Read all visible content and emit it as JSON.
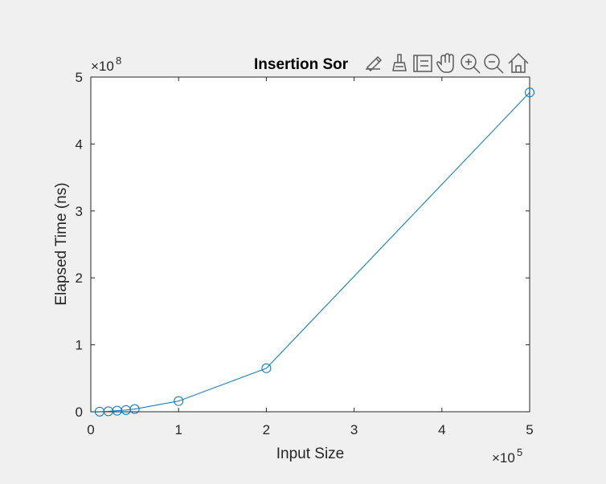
{
  "chart_data": {
    "type": "line",
    "title": "Insertion Sor",
    "xlabel": "Input Size",
    "ylabel": "Elapsed Time (ns)",
    "xlim": [
      0,
      500000
    ],
    "ylim": [
      0,
      500000000
    ],
    "x_ticks": [
      0,
      100000,
      200000,
      300000,
      400000,
      500000
    ],
    "y_ticks": [
      0,
      100000000,
      200000000,
      300000000,
      400000000,
      500000000
    ],
    "x_tick_labels": [
      "0",
      "1",
      "2",
      "3",
      "4",
      "5"
    ],
    "y_tick_labels": [
      "0",
      "1",
      "2",
      "3",
      "4",
      "5"
    ],
    "x_exponent": {
      "base": "×10",
      "power": "5"
    },
    "y_exponent": {
      "base": "×10",
      "power": "8"
    },
    "grid": false,
    "series": [
      {
        "color": "#0072bd",
        "marker": "circle",
        "points": [
          {
            "x": 10000,
            "y": 200000
          },
          {
            "x": 20000,
            "y": 700000
          },
          {
            "x": 30000,
            "y": 1600000
          },
          {
            "x": 40000,
            "y": 2600000
          },
          {
            "x": 50000,
            "y": 4000000
          },
          {
            "x": 100000,
            "y": 16000000
          },
          {
            "x": 200000,
            "y": 65000000
          },
          {
            "x": 500000,
            "y": 477000000
          }
        ]
      }
    ]
  },
  "toolbar": {
    "icons": [
      "brush-icon",
      "data-tips-icon",
      "legend-icon",
      "pan-icon",
      "zoom-in-icon",
      "zoom-out-icon",
      "home-icon"
    ]
  },
  "colors": {
    "background": "#f0f0f0",
    "axes_background": "#ffffff",
    "axis_color": "#262626",
    "series": "#0072bd"
  }
}
